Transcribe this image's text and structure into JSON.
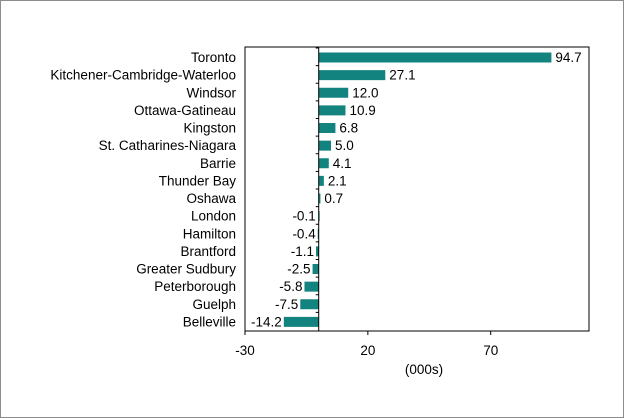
{
  "colors": {
    "bar": "#138380",
    "axis": "#000000",
    "border": "#8c8c8c"
  },
  "chart_data": {
    "type": "bar",
    "orientation": "horizontal",
    "categories": [
      "Toronto",
      "Kitchener-Cambridge-Waterloo",
      "Windsor",
      "Ottawa-Gatineau",
      "Kingston",
      "St. Catharines-Niagara",
      "Barrie",
      "Thunder Bay",
      "Oshawa",
      "London",
      "Hamilton",
      "Brantford",
      "Greater Sudbury",
      "Peterborough",
      "Guelph",
      "Belleville"
    ],
    "values": [
      94.7,
      27.1,
      12.0,
      10.9,
      6.8,
      5.0,
      4.1,
      2.1,
      0.7,
      -0.1,
      -0.4,
      -1.1,
      -2.5,
      -5.8,
      -7.5,
      -14.2
    ],
    "value_labels": [
      "94.7",
      "27.1",
      "12.0",
      "10.9",
      "6.8",
      "5.0",
      "4.1",
      "2.1",
      "0.7",
      "-0.1",
      "-0.4",
      "-1.1",
      "-2.5",
      "-5.8",
      "-7.5",
      "-14.2"
    ],
    "xlim": [
      -30,
      110
    ],
    "x_ticks": [
      -30,
      20,
      70
    ],
    "x_tick_labels": [
      "-30",
      "20",
      "70"
    ],
    "xlabel": "(000s)",
    "grid": false,
    "legend": "none"
  }
}
